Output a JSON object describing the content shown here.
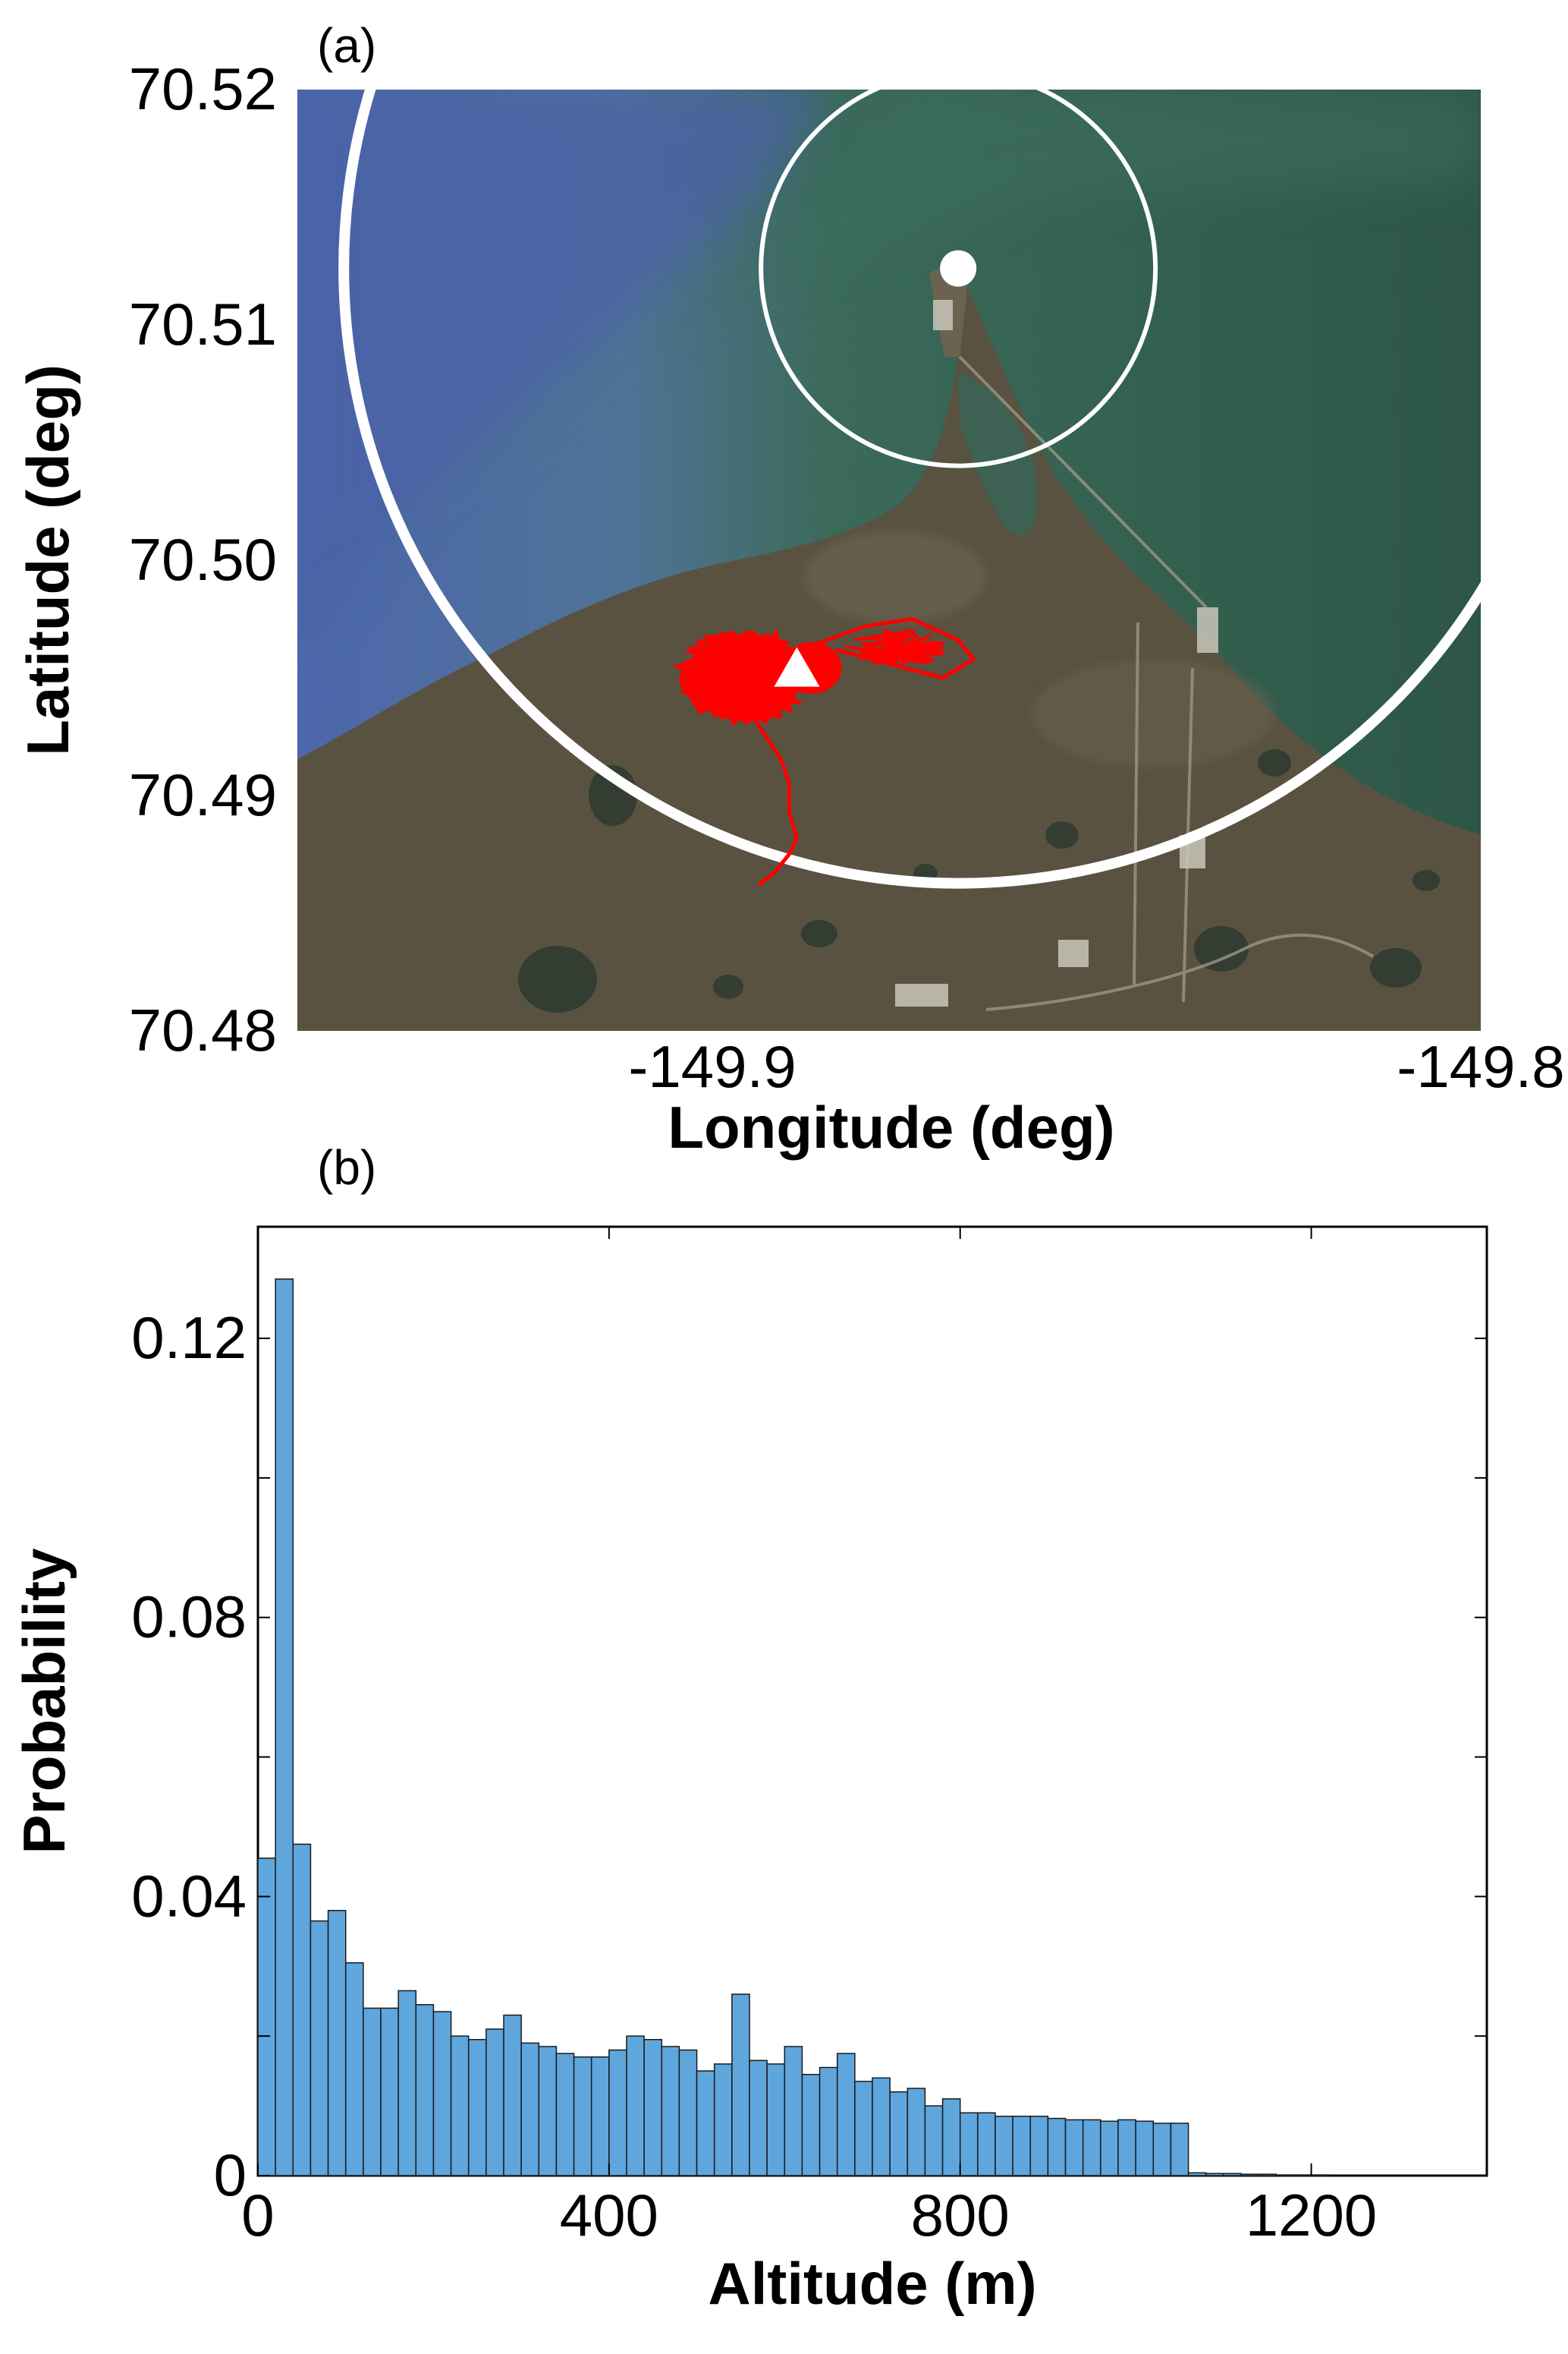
{
  "chart_data": [
    {
      "panel_label": "(a)",
      "type": "scatter",
      "background": "satellite map (sea and coastline)",
      "xlabel": "Longitude (deg)",
      "ylabel": "Latitude (deg)",
      "xlim": [
        -149.954,
        -149.8
      ],
      "ylim": [
        70.48,
        70.52
      ],
      "xticks": [
        -149.9,
        -149.8
      ],
      "xtick_labels": [
        "-149.9",
        "-149.8"
      ],
      "yticks": [
        70.48,
        70.49,
        70.5,
        70.51,
        70.52
      ],
      "ytick_labels": [
        "70.48",
        "70.49",
        "70.50",
        "70.51",
        "70.52"
      ],
      "markers": [
        {
          "shape": "circle",
          "color": "#ffffff",
          "lon": -149.868,
          "lat": 70.5124
        },
        {
          "shape": "triangle",
          "color": "#ffffff",
          "lon": -149.889,
          "lat": 70.4954
        }
      ],
      "rings": [
        {
          "center_lon": -149.868,
          "center_lat": 70.5124,
          "radius_px": 260,
          "color": "#ffffff"
        },
        {
          "center_lon": -149.868,
          "center_lat": 70.5124,
          "radius_px": 810,
          "color": "#ffffff"
        }
      ],
      "track": {
        "color": "#ff0000",
        "cluster_center": [
          -149.896,
          70.4951
        ],
        "points": [
          [
            -149.895,
            70.4935
          ],
          [
            -149.893,
            70.4925
          ],
          [
            -149.891,
            70.4915
          ],
          [
            -149.89,
            70.4905
          ],
          [
            -149.89,
            70.4893
          ],
          [
            -149.889,
            70.4882
          ],
          [
            -149.89,
            70.4875
          ],
          [
            -149.892,
            70.4867
          ],
          [
            -149.894,
            70.4862
          ]
        ],
        "spur_points": [
          [
            -149.892,
            70.4955
          ],
          [
            -149.886,
            70.4965
          ],
          [
            -149.88,
            70.4972
          ],
          [
            -149.874,
            70.4975
          ],
          [
            -149.868,
            70.4966
          ],
          [
            -149.866,
            70.4958
          ],
          [
            -149.87,
            70.495
          ],
          [
            -149.877,
            70.4956
          ],
          [
            -149.884,
            70.4962
          ]
        ]
      },
      "colors": {
        "sea": "#2f5a47",
        "deep_water": "#4a64a8",
        "land": "#5b5342",
        "track": "#ff0000"
      }
    },
    {
      "panel_label": "(b)",
      "type": "bar",
      "xlabel": "Altitude (m)",
      "ylabel": "Probability",
      "xlim": [
        0,
        1400
      ],
      "ylim": [
        0,
        0.136
      ],
      "xticks": [
        0,
        400,
        800,
        1200
      ],
      "xtick_labels": [
        "0",
        "400",
        "800",
        "1200"
      ],
      "yticks": [
        0,
        0.04,
        0.08,
        0.12
      ],
      "ytick_labels": [
        "0",
        "0.04",
        "0.08",
        "0.12"
      ],
      "bin_width": 20,
      "bin_start": 0,
      "color": "#5fa6dc",
      "values": [
        0.0455,
        0.1285,
        0.0475,
        0.0365,
        0.038,
        0.0305,
        0.024,
        0.024,
        0.0265,
        0.0245,
        0.0235,
        0.02,
        0.0195,
        0.021,
        0.023,
        0.019,
        0.0185,
        0.0175,
        0.017,
        0.017,
        0.018,
        0.02,
        0.0195,
        0.0185,
        0.018,
        0.015,
        0.016,
        0.026,
        0.0165,
        0.016,
        0.0185,
        0.0145,
        0.0155,
        0.0175,
        0.0135,
        0.014,
        0.012,
        0.0125,
        0.01,
        0.011,
        0.009,
        0.009,
        0.0085,
        0.0085,
        0.0085,
        0.0082,
        0.008,
        0.008,
        0.0078,
        0.008,
        0.0078,
        0.0075,
        0.0075,
        0.0004,
        0.0003,
        0.0003,
        0.0002,
        0.0002,
        0.0001,
        0.0001,
        0.0001,
        0.0,
        0.0,
        0.0,
        0.0,
        0.0,
        0.0,
        0.0,
        0.0,
        0.0
      ]
    }
  ]
}
